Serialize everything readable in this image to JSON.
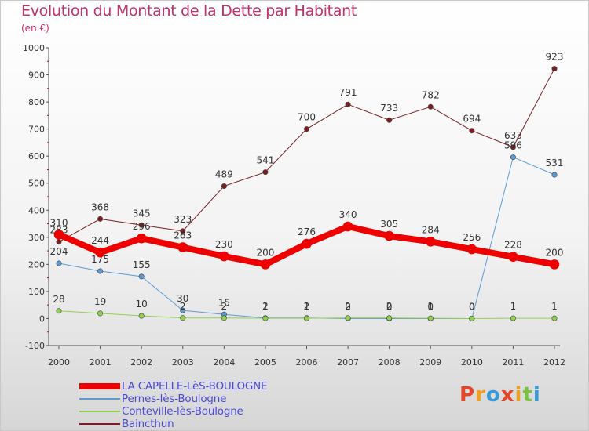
{
  "header": {
    "title": "Evolution du Montant de la Dette par Habitant",
    "subtitle": "(en €)"
  },
  "logo": {
    "text": "Proxiti",
    "colors": [
      "#e8442a",
      "#f0a020",
      "#3a9ad9",
      "#e8442a",
      "#f0a020",
      "#7ac142",
      "#3a9ad9"
    ]
  },
  "chart_data": {
    "type": "line",
    "x": [
      "2000",
      "2001",
      "2002",
      "2003",
      "2004",
      "2005",
      "2006",
      "2007",
      "2008",
      "2009",
      "2010",
      "2011",
      "2012"
    ],
    "ylim": [
      -100,
      1000
    ],
    "yticks": [
      "-100",
      "0",
      "100",
      "200",
      "300",
      "400",
      "500",
      "600",
      "700",
      "800",
      "900",
      "1000"
    ],
    "grid": false,
    "legend_position": "bottom-left",
    "series": [
      {
        "name": "Baincthun",
        "color": "#7a1e22",
        "width": 1,
        "values": [
          283,
          368,
          345,
          323,
          489,
          541,
          700,
          791,
          733,
          782,
          694,
          633,
          923
        ],
        "labels": [
          "283",
          "368",
          "345",
          "323",
          "489",
          "541",
          "700",
          "791",
          "733",
          "782",
          "694",
          "633",
          "923"
        ]
      },
      {
        "name": "Pernes-lès-Boulogne",
        "color": "#5b9bd5",
        "width": 1,
        "values": [
          204,
          175,
          155,
          30,
          15,
          2,
          2,
          0,
          0,
          0,
          0,
          596,
          531
        ],
        "labels": [
          "204",
          "175",
          "155",
          "30",
          "15",
          "2",
          "2",
          "0",
          "0",
          "0",
          "0",
          "596",
          "531"
        ]
      },
      {
        "name": "Conteville-lès-Boulogne",
        "color": "#8fd14f",
        "width": 1,
        "values": [
          28,
          19,
          10,
          2,
          2,
          1,
          1,
          2,
          2,
          1,
          0,
          1,
          1
        ],
        "labels": [
          "28",
          "19",
          "10",
          "2",
          "2",
          "1",
          "1",
          "2",
          "2",
          "1",
          "0",
          "1",
          "1"
        ]
      },
      {
        "name": "LA CAPELLE-LèS-BOULOGNE",
        "color": "#ee0000",
        "width": 8,
        "values": [
          310,
          244,
          296,
          263,
          230,
          200,
          276,
          340,
          305,
          284,
          256,
          228,
          200
        ],
        "labels": [
          "310",
          "244",
          "296",
          "263",
          "230",
          "200",
          "276",
          "340",
          "305",
          "284",
          "256",
          "228",
          "200"
        ]
      }
    ],
    "legend": [
      "LA CAPELLE-LèS-BOULOGNE",
      "Pernes-lès-Boulogne",
      "Conteville-lès-Boulogne",
      "Baincthun"
    ]
  }
}
